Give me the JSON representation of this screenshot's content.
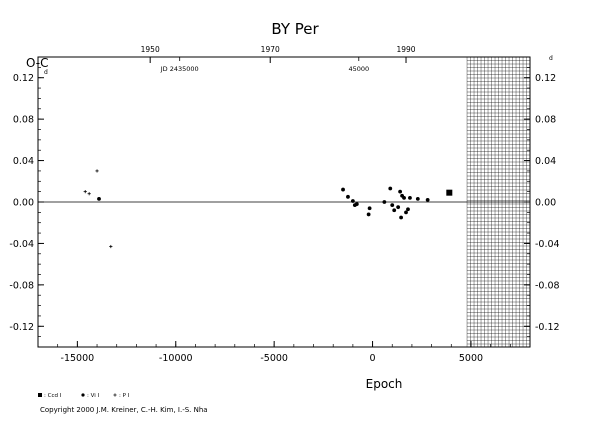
{
  "chart_data": {
    "type": "scatter",
    "title": "BY Per",
    "ylabel": "O-C",
    "y_unit": "d",
    "xlabel": "Epoch",
    "xlim": [
      -17000,
      8000
    ],
    "ylim": [
      -0.14,
      0.14
    ],
    "x_ticks": [
      -15000,
      -10000,
      -5000,
      0,
      5000
    ],
    "x_tick_labels": [
      "-15000",
      "-10000",
      "-5000",
      "0",
      "5000"
    ],
    "y_ticks": [
      -0.12,
      -0.08,
      -0.04,
      0.0,
      0.04,
      0.08,
      0.12
    ],
    "y_tick_labels": [
      "-0.12",
      "-0.08",
      "-0.04",
      "0.00",
      "0.04",
      "0.08",
      "0.12"
    ],
    "top_axis": {
      "years": [
        {
          "epoch": -11300,
          "label": "1950"
        },
        {
          "epoch": -5200,
          "label": "1970"
        },
        {
          "epoch": 1700,
          "label": "1990"
        }
      ],
      "jd_labels": [
        {
          "epoch": -9800,
          "label": "JD 2435000"
        },
        {
          "epoch": -700,
          "label": "45000"
        }
      ]
    },
    "grid": false,
    "zero_line": true,
    "hatched_region": {
      "x_from": 4800,
      "x_to": 8000
    },
    "legend": {
      "placement": "bottom-left",
      "entries": [
        {
          "marker": "square",
          "label": ": Ccd I"
        },
        {
          "marker": "circle",
          "label": ": Vi I"
        },
        {
          "marker": "plus",
          "label": ": P I"
        }
      ]
    },
    "series": [
      {
        "marker": "plus",
        "points": [
          [
            -14600,
            0.01
          ],
          [
            -14400,
            0.008
          ],
          [
            -14000,
            0.03
          ],
          [
            -13300,
            -0.043
          ]
        ]
      },
      {
        "marker": "circle",
        "points": [
          [
            -13900,
            0.003
          ],
          [
            -1500,
            0.012
          ],
          [
            -1250,
            0.005
          ],
          [
            -1000,
            0.001
          ],
          [
            -900,
            -0.003
          ],
          [
            -800,
            -0.002
          ],
          [
            -200,
            -0.012
          ],
          [
            -150,
            -0.006
          ],
          [
            600,
            0.0
          ],
          [
            900,
            0.013
          ],
          [
            1000,
            -0.003
          ],
          [
            1100,
            -0.008
          ],
          [
            1300,
            -0.005
          ],
          [
            1400,
            0.01
          ],
          [
            1450,
            -0.015
          ],
          [
            1500,
            0.006
          ],
          [
            1600,
            0.004
          ],
          [
            1700,
            -0.01
          ],
          [
            1800,
            -0.007
          ],
          [
            1900,
            0.004
          ],
          [
            2300,
            0.003
          ],
          [
            2800,
            0.002
          ]
        ]
      },
      {
        "marker": "square",
        "points": [
          [
            3900,
            0.009
          ]
        ]
      }
    ]
  },
  "copyright": "Copyright 2000 J.M. Kreiner, C.-H. Kim, I.-S. Nha"
}
